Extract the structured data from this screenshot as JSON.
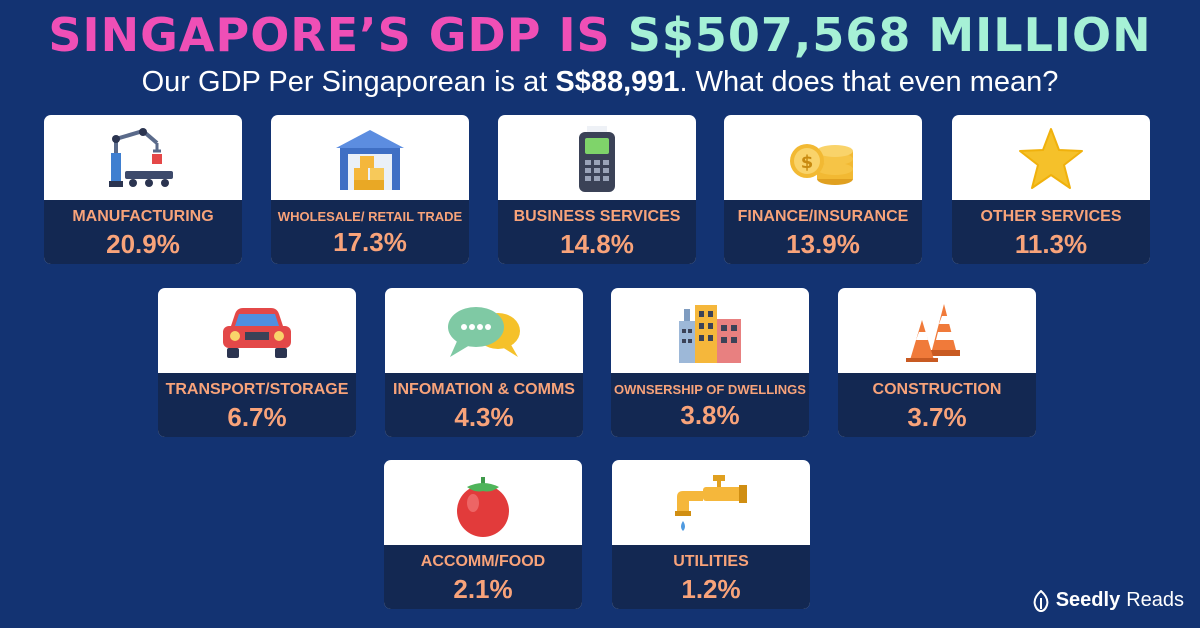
{
  "header": {
    "title_part1": "SINGAPORE’S GDP IS ",
    "title_part2": "S$507,568 MILLION",
    "subtitle_prefix": "Our GDP Per Singaporean is at ",
    "subtitle_value": "S$88,991",
    "subtitle_suffix": ". What does that even mean?"
  },
  "sectors": [
    {
      "label": "MANUFACTURING",
      "percent": "20.9%",
      "icon": "robot-arm-icon"
    },
    {
      "label": "WHOLESALE/ RETAIL TRADE",
      "percent": "17.3%",
      "icon": "warehouse-icon"
    },
    {
      "label": "BUSINESS SERVICES",
      "percent": "14.8%",
      "icon": "card-terminal-icon"
    },
    {
      "label": "FINANCE/INSURANCE",
      "percent": "13.9%",
      "icon": "coins-icon"
    },
    {
      "label": "OTHER SERVICES",
      "percent": "11.3%",
      "icon": "star-icon"
    },
    {
      "label": "TRANSPORT/STORAGE",
      "percent": "6.7%",
      "icon": "car-icon"
    },
    {
      "label": "INFOMATION & COMMS",
      "percent": "4.3%",
      "icon": "chat-bubbles-icon"
    },
    {
      "label": "OWNSERSHIP OF DWELLINGS",
      "percent": "3.8%",
      "icon": "buildings-icon"
    },
    {
      "label": "CONSTRUCTION",
      "percent": "3.7%",
      "icon": "traffic-cones-icon"
    },
    {
      "label": "ACCOMM/FOOD",
      "percent": "2.1%",
      "icon": "tomato-icon"
    },
    {
      "label": "UTILITIES",
      "percent": "1.2%",
      "icon": "water-tap-icon"
    }
  ],
  "brand": {
    "name_bold": "Seedly",
    "name_regular": "Reads"
  },
  "colors": {
    "background": "#133372",
    "band": "#132852",
    "accent": "#f8a37a",
    "title_pink": "#ef4fb6",
    "title_mint": "#a6f1d6"
  }
}
